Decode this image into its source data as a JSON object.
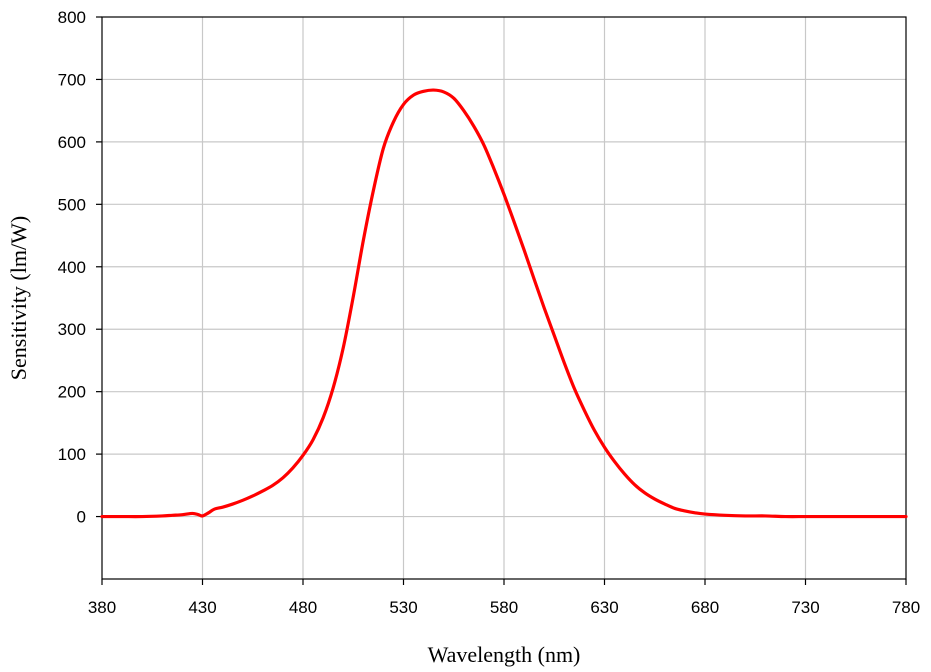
{
  "chart_data": {
    "type": "line",
    "xlabel": "Wavelength (nm)",
    "ylabel": "Sensitivity (lm/W)",
    "xlim": [
      380,
      780
    ],
    "ylim": [
      -100,
      800
    ],
    "xticks": [
      380,
      430,
      480,
      530,
      580,
      630,
      680,
      730,
      780
    ],
    "yticks": [
      0,
      100,
      200,
      300,
      400,
      500,
      600,
      700,
      800
    ],
    "grid": true,
    "legend": "none",
    "series": [
      {
        "color": "#ff0000",
        "x": [
          380,
          390,
          400,
          410,
          415,
          420,
          425,
          428,
          430,
          433,
          436,
          440,
          445,
          450,
          455,
          460,
          465,
          470,
          475,
          480,
          485,
          490,
          495,
          500,
          505,
          510,
          515,
          520,
          525,
          530,
          535,
          540,
          545,
          550,
          555,
          560,
          565,
          570,
          575,
          580,
          585,
          590,
          595,
          600,
          605,
          610,
          615,
          620,
          625,
          630,
          635,
          640,
          645,
          650,
          655,
          660,
          665,
          670,
          675,
          680,
          690,
          700,
          710,
          720,
          730,
          740,
          750,
          760,
          770,
          780
        ],
        "y": [
          0,
          0,
          0,
          1,
          2,
          3,
          5,
          3,
          1,
          6,
          12,
          15,
          20,
          26,
          33,
          41,
          50,
          62,
          78,
          98,
          123,
          158,
          206,
          270,
          352,
          442,
          522,
          590,
          632,
          660,
          675,
          681,
          683,
          680,
          670,
          650,
          625,
          595,
          557,
          516,
          472,
          427,
          380,
          334,
          290,
          246,
          205,
          170,
          138,
          111,
          88,
          68,
          51,
          38,
          28,
          20,
          13,
          9,
          6,
          4,
          2,
          1,
          1,
          0,
          0,
          0,
          0,
          0,
          0,
          0
        ]
      }
    ]
  }
}
